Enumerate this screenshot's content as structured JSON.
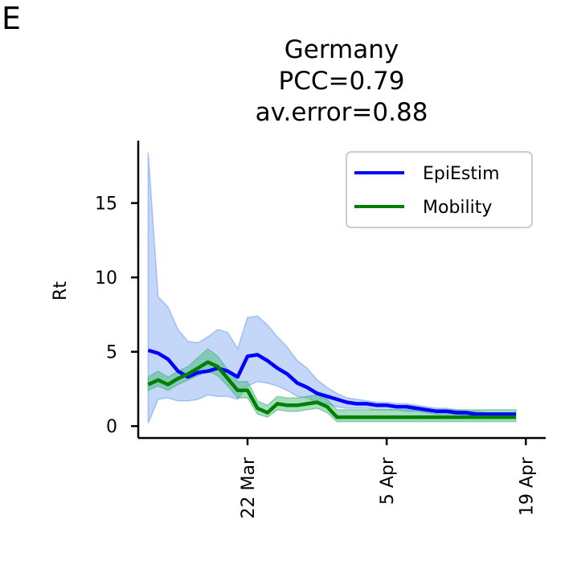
{
  "panel_label": "E",
  "chart_data": {
    "type": "line",
    "title_lines": [
      "Germany",
      "PCC=0.79",
      "av.error=0.88"
    ],
    "xlabel": "",
    "ylabel": "Rt",
    "x_start": "2020-03-12",
    "x_end": "2020-04-19",
    "xlim": [
      "2020-03-11",
      "2020-04-21"
    ],
    "ylim": [
      -0.8,
      19.2
    ],
    "yticks": [
      0,
      5,
      10,
      15
    ],
    "xticks": [
      {
        "date": "2020-03-22",
        "label": "22 Mar"
      },
      {
        "date": "2020-04-05",
        "label": "5 Apr"
      },
      {
        "date": "2020-04-19",
        "label": "19 Apr"
      }
    ],
    "grid": false,
    "legend_position": "top-right",
    "series": [
      {
        "name": "EpiEstim",
        "color": "#0000ff",
        "band_color": "#6495ed",
        "values": [
          5.1,
          4.9,
          4.5,
          3.7,
          3.3,
          3.6,
          3.7,
          3.9,
          3.7,
          3.3,
          4.7,
          4.8,
          4.4,
          3.9,
          3.5,
          2.9,
          2.6,
          2.2,
          2.0,
          1.8,
          1.6,
          1.5,
          1.5,
          1.4,
          1.4,
          1.3,
          1.3,
          1.2,
          1.1,
          1.0,
          1.0,
          0.9,
          0.9,
          0.8,
          0.8,
          0.8,
          0.8,
          0.8
        ],
        "lower": [
          0.2,
          1.8,
          1.9,
          1.7,
          1.7,
          1.8,
          2.1,
          2.0,
          2.0,
          1.8,
          2.7,
          3.0,
          2.9,
          2.7,
          2.4,
          2.0,
          1.9,
          1.6,
          1.5,
          1.3,
          1.2,
          1.2,
          1.2,
          1.1,
          1.1,
          1.1,
          1.0,
          1.0,
          0.9,
          0.8,
          0.8,
          0.8,
          0.7,
          0.7,
          0.7,
          0.7,
          0.7,
          0.7
        ],
        "upper": [
          18.4,
          8.7,
          8.0,
          6.5,
          5.7,
          5.6,
          6.0,
          6.5,
          6.3,
          5.2,
          7.3,
          7.4,
          6.8,
          6.0,
          5.3,
          4.4,
          3.9,
          3.1,
          2.6,
          2.2,
          1.9,
          1.8,
          1.7,
          1.6,
          1.6,
          1.5,
          1.5,
          1.4,
          1.3,
          1.2,
          1.2,
          1.1,
          1.0,
          1.0,
          0.9,
          0.9,
          0.9,
          0.9
        ]
      },
      {
        "name": "Mobility",
        "color": "#008000",
        "band_color": "#3cb371",
        "values": [
          2.8,
          3.1,
          2.8,
          3.2,
          3.5,
          3.9,
          4.3,
          4.0,
          3.2,
          2.4,
          2.4,
          1.2,
          0.9,
          1.5,
          1.4,
          1.4,
          1.5,
          1.6,
          1.3,
          0.6,
          0.6,
          0.6,
          0.6,
          0.6,
          0.6,
          0.6,
          0.6,
          0.6,
          0.6,
          0.6,
          0.6,
          0.6,
          0.6,
          0.6,
          0.6,
          0.6,
          0.6,
          0.6
        ],
        "lower": [
          2.4,
          2.7,
          2.4,
          2.8,
          3.1,
          3.4,
          3.7,
          3.4,
          2.7,
          1.9,
          1.9,
          0.8,
          0.6,
          1.1,
          1.0,
          1.0,
          1.1,
          1.2,
          0.9,
          0.3,
          0.3,
          0.3,
          0.3,
          0.3,
          0.3,
          0.3,
          0.3,
          0.3,
          0.3,
          0.3,
          0.3,
          0.3,
          0.3,
          0.3,
          0.3,
          0.3,
          0.3,
          0.3
        ],
        "upper": [
          3.3,
          3.7,
          3.3,
          3.7,
          4.0,
          4.6,
          5.2,
          4.7,
          3.8,
          3.0,
          3.0,
          1.7,
          1.4,
          2.0,
          1.9,
          1.9,
          2.0,
          2.1,
          1.8,
          1.1,
          1.1,
          1.1,
          1.1,
          1.1,
          1.1,
          1.1,
          1.1,
          1.1,
          1.1,
          1.1,
          1.1,
          1.1,
          1.1,
          1.1,
          1.1,
          1.1,
          1.1,
          1.1
        ]
      }
    ]
  }
}
